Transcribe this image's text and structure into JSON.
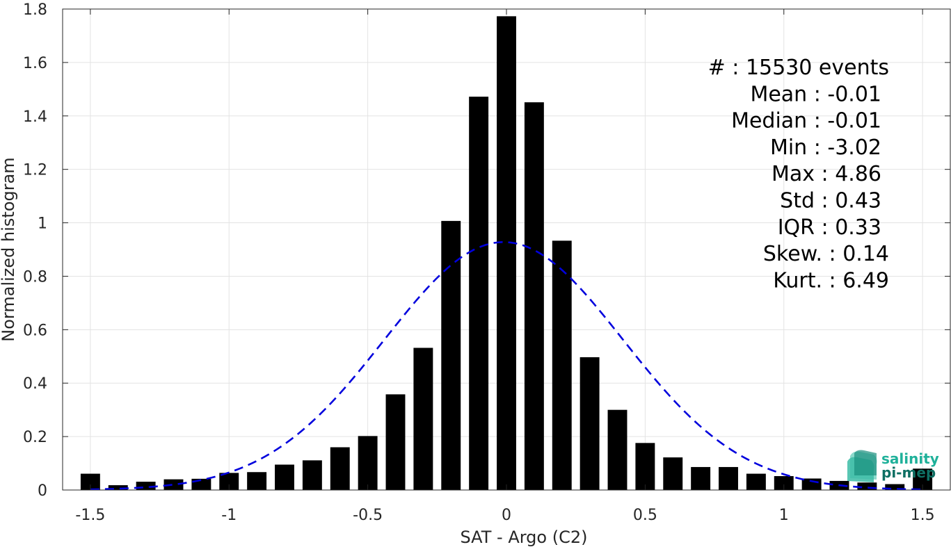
{
  "chart_data": {
    "type": "bar",
    "xlabel": "SAT - Argo (C2)",
    "ylabel": "Normalized histogram",
    "xlim": [
      -1.6,
      1.6
    ],
    "ylim": [
      0,
      1.8
    ],
    "xticks": [
      -1.5,
      -1,
      -0.5,
      0,
      0.5,
      1,
      1.5
    ],
    "xtick_labels": [
      "-1.5",
      "-1",
      "-0.5",
      "0",
      "0.5",
      "1",
      "1.5"
    ],
    "yticks": [
      0,
      0.2,
      0.4,
      0.6,
      0.8,
      1,
      1.2,
      1.4,
      1.6,
      1.8
    ],
    "ytick_labels": [
      "0",
      "0.2",
      "0.4",
      "0.6",
      "0.8",
      "1",
      "1.2",
      "1.4",
      "1.6",
      "1.8"
    ],
    "grid": true,
    "bin_width": 0.1,
    "bar_color": "#000000",
    "x": [
      -1.5,
      -1.4,
      -1.3,
      -1.2,
      -1.1,
      -1.0,
      -0.9,
      -0.8,
      -0.7,
      -0.6,
      -0.5,
      -0.4,
      -0.3,
      -0.2,
      -0.1,
      0.0,
      0.1,
      0.2,
      0.3,
      0.4,
      0.5,
      0.6,
      0.7,
      0.8,
      0.9,
      1.0,
      1.1,
      1.2,
      1.3,
      1.4,
      1.5
    ],
    "values": [
      0.061,
      0.018,
      0.031,
      0.04,
      0.042,
      0.064,
      0.067,
      0.095,
      0.111,
      0.16,
      0.202,
      0.358,
      0.532,
      1.007,
      1.472,
      1.773,
      1.451,
      0.933,
      0.497,
      0.3,
      0.176,
      0.122,
      0.086,
      0.086,
      0.061,
      0.052,
      0.043,
      0.034,
      0.028,
      0.022,
      0.08
    ],
    "fit_curve": {
      "type": "gaussian",
      "mean": -0.01,
      "std": 0.43,
      "style": "dashed",
      "color": "#0000dd"
    },
    "stats": [
      "#  : 15530 events",
      "Mean : -0.01",
      "Median : -0.01",
      "Min : -3.02",
      "Max : 4.86",
      "Std : 0.43",
      "IQR : 0.33",
      "Skew. : 0.14",
      "Kurt. : 6.49"
    ]
  },
  "logo": {
    "line1": "salinity",
    "line2": "pi-mep",
    "color1": "#1fb19a",
    "color2": "#0e6f63"
  }
}
